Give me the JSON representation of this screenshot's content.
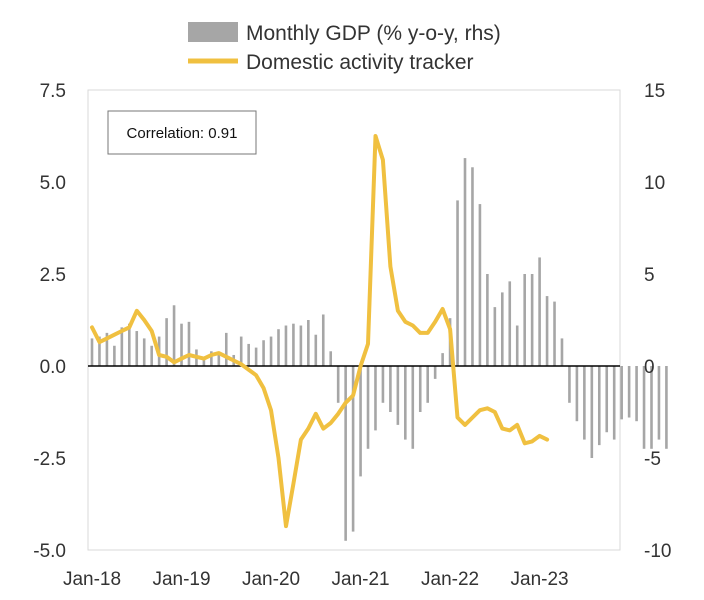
{
  "chart_data": {
    "type": "bar+line",
    "title": "",
    "xlabel": "",
    "ylabel_left": "",
    "ylabel_right": "",
    "y_left_ticks": [
      "7.5",
      "5.0",
      "2.5",
      "0.0",
      "-2.5",
      "-5.0"
    ],
    "y_left_values": [
      7.5,
      5.0,
      2.5,
      0.0,
      -2.5,
      -5.0
    ],
    "y_right_ticks": [
      "15",
      "10",
      "5",
      "0",
      "-5",
      "-10"
    ],
    "y_right_values": [
      15,
      10,
      5,
      0,
      -5,
      -10
    ],
    "ylim_left": [
      -5.0,
      7.5
    ],
    "ylim_right": [
      -10,
      15
    ],
    "x_ticks": [
      "Jan-18",
      "Jan-19",
      "Jan-20",
      "Jan-21",
      "Jan-22",
      "Jan-23"
    ],
    "x_tick_index": [
      0,
      12,
      24,
      36,
      48,
      60
    ],
    "annotation": "Correlation: 0.91",
    "legend": [
      "Monthly GDP (% y-o-y, rhs)",
      "Domestic activity tracker"
    ],
    "legend_position": "top-center",
    "series": [
      {
        "name": "Monthly GDP (% y-o-y, rhs)",
        "axis": "right",
        "kind": "bar",
        "color": "#a6a6a6",
        "values": [
          1.5,
          1.6,
          1.8,
          1.1,
          2.1,
          2.3,
          1.9,
          1.5,
          1.1,
          1.6,
          2.6,
          3.3,
          2.3,
          2.4,
          0.9,
          0.5,
          0.8,
          0.6,
          1.8,
          0.6,
          1.6,
          1.2,
          1.0,
          1.4,
          1.6,
          2.0,
          2.2,
          2.3,
          2.2,
          2.5,
          1.7,
          2.8,
          0.8,
          -2.0,
          -9.5,
          -9.0,
          -6.0,
          -4.5,
          -3.5,
          -2.0,
          -2.5,
          -3.2,
          -4.0,
          -4.5,
          -2.5,
          -2.0,
          -0.7,
          0.7,
          2.6,
          9.0,
          11.3,
          10.8,
          8.8,
          5.0,
          3.2,
          4.0,
          4.6,
          2.2,
          5.0,
          5.0,
          5.9,
          3.8,
          3.5,
          1.5,
          -2.0,
          -3.0,
          -4.0,
          -5.0,
          -4.3,
          -3.6,
          -4.0,
          -2.9,
          -2.8,
          -3.0,
          -4.5,
          -4.5,
          -4.0,
          -4.5
        ]
      },
      {
        "name": "Domestic activity tracker",
        "axis": "left",
        "kind": "line",
        "color": "#f0c040",
        "values": [
          1.05,
          0.65,
          0.75,
          0.85,
          0.95,
          1.05,
          1.5,
          1.25,
          0.95,
          0.3,
          0.25,
          0.1,
          0.2,
          0.3,
          0.25,
          0.2,
          0.3,
          0.35,
          0.25,
          0.15,
          0.05,
          -0.1,
          -0.25,
          -0.6,
          -1.2,
          -2.5,
          -4.35,
          -3.2,
          -2.0,
          -1.7,
          -1.3,
          -1.7,
          -1.55,
          -1.3,
          -1.0,
          -0.8,
          0.0,
          0.6,
          6.25,
          5.6,
          2.7,
          1.5,
          1.2,
          1.1,
          0.9,
          0.9,
          1.2,
          1.55,
          1.0,
          -1.4,
          -1.6,
          -1.4,
          -1.2,
          -1.15,
          -1.25,
          -1.7,
          -1.75,
          -1.6,
          -2.1,
          -2.05,
          -1.9,
          -2.0
        ]
      }
    ]
  }
}
